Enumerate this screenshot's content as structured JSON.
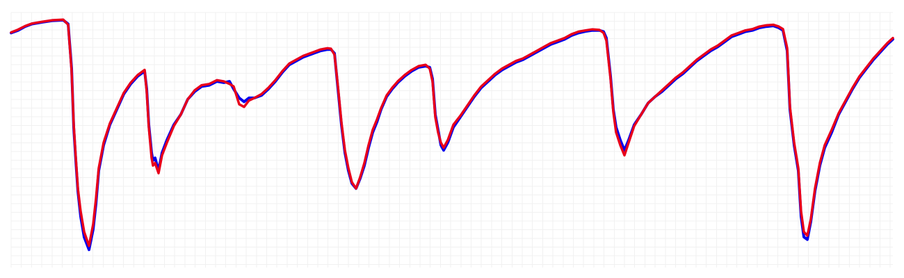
{
  "chart_data": {
    "type": "line",
    "title": "",
    "xlabel": "",
    "ylabel": "",
    "xlim": [
      0,
      1268
    ],
    "ylim": [
      0,
      1
    ],
    "grid": true,
    "legend": "none",
    "series": [
      {
        "color": "#0000ee",
        "points": [
          [
            0,
            0.92
          ],
          [
            10,
            0.93
          ],
          [
            20,
            0.945
          ],
          [
            30,
            0.955
          ],
          [
            45,
            0.962
          ],
          [
            60,
            0.968
          ],
          [
            75,
            0.97
          ],
          [
            82,
            0.955
          ],
          [
            87,
            0.78
          ],
          [
            90,
            0.55
          ],
          [
            93,
            0.42
          ],
          [
            96,
            0.3
          ],
          [
            100,
            0.2
          ],
          [
            105,
            0.12
          ],
          [
            112,
            0.07
          ],
          [
            118,
            0.15
          ],
          [
            122,
            0.25
          ],
          [
            126,
            0.38
          ],
          [
            133,
            0.48
          ],
          [
            142,
            0.56
          ],
          [
            152,
            0.62
          ],
          [
            162,
            0.68
          ],
          [
            172,
            0.72
          ],
          [
            182,
            0.75
          ],
          [
            192,
            0.77
          ],
          [
            195,
            0.7
          ],
          [
            198,
            0.56
          ],
          [
            202,
            0.45
          ],
          [
            204,
            0.42
          ],
          [
            207,
            0.43
          ],
          [
            212,
            0.38
          ],
          [
            217,
            0.45
          ],
          [
            224,
            0.5
          ],
          [
            234,
            0.56
          ],
          [
            244,
            0.6
          ],
          [
            254,
            0.66
          ],
          [
            264,
            0.69
          ],
          [
            274,
            0.71
          ],
          [
            285,
            0.715
          ],
          [
            296,
            0.73
          ],
          [
            306,
            0.725
          ],
          [
            314,
            0.73
          ],
          [
            320,
            0.7
          ],
          [
            328,
            0.665
          ],
          [
            335,
            0.65
          ],
          [
            342,
            0.665
          ],
          [
            350,
            0.665
          ],
          [
            360,
            0.675
          ],
          [
            370,
            0.7
          ],
          [
            380,
            0.73
          ],
          [
            390,
            0.765
          ],
          [
            400,
            0.795
          ],
          [
            410,
            0.81
          ],
          [
            420,
            0.825
          ],
          [
            435,
            0.84
          ],
          [
            445,
            0.85
          ],
          [
            455,
            0.855
          ],
          [
            460,
            0.855
          ],
          [
            465,
            0.84
          ],
          [
            470,
            0.7
          ],
          [
            475,
            0.56
          ],
          [
            480,
            0.45
          ],
          [
            485,
            0.38
          ],
          [
            490,
            0.33
          ],
          [
            496,
            0.31
          ],
          [
            502,
            0.35
          ],
          [
            508,
            0.4
          ],
          [
            514,
            0.47
          ],
          [
            520,
            0.53
          ],
          [
            526,
            0.57
          ],
          [
            532,
            0.62
          ],
          [
            540,
            0.67
          ],
          [
            548,
            0.7
          ],
          [
            556,
            0.725
          ],
          [
            566,
            0.75
          ],
          [
            576,
            0.77
          ],
          [
            586,
            0.785
          ],
          [
            596,
            0.79
          ],
          [
            602,
            0.785
          ],
          [
            606,
            0.74
          ],
          [
            610,
            0.6
          ],
          [
            614,
            0.54
          ],
          [
            618,
            0.48
          ],
          [
            622,
            0.46
          ],
          [
            628,
            0.49
          ],
          [
            636,
            0.55
          ],
          [
            646,
            0.59
          ],
          [
            656,
            0.63
          ],
          [
            666,
            0.67
          ],
          [
            676,
            0.705
          ],
          [
            686,
            0.73
          ],
          [
            696,
            0.755
          ],
          [
            706,
            0.775
          ],
          [
            716,
            0.79
          ],
          [
            726,
            0.805
          ],
          [
            736,
            0.815
          ],
          [
            746,
            0.83
          ],
          [
            756,
            0.845
          ],
          [
            766,
            0.86
          ],
          [
            776,
            0.875
          ],
          [
            786,
            0.885
          ],
          [
            796,
            0.895
          ],
          [
            806,
            0.91
          ],
          [
            816,
            0.92
          ],
          [
            826,
            0.926
          ],
          [
            836,
            0.93
          ],
          [
            846,
            0.93
          ],
          [
            852,
            0.925
          ],
          [
            856,
            0.9
          ],
          [
            862,
            0.75
          ],
          [
            866,
            0.62
          ],
          [
            870,
            0.55
          ],
          [
            876,
            0.5
          ],
          [
            882,
            0.46
          ],
          [
            888,
            0.5
          ],
          [
            896,
            0.56
          ],
          [
            906,
            0.6
          ],
          [
            916,
            0.645
          ],
          [
            926,
            0.67
          ],
          [
            936,
            0.69
          ],
          [
            946,
            0.715
          ],
          [
            956,
            0.74
          ],
          [
            966,
            0.76
          ],
          [
            976,
            0.785
          ],
          [
            986,
            0.81
          ],
          [
            996,
            0.83
          ],
          [
            1006,
            0.85
          ],
          [
            1016,
            0.865
          ],
          [
            1026,
            0.885
          ],
          [
            1036,
            0.905
          ],
          [
            1046,
            0.915
          ],
          [
            1056,
            0.925
          ],
          [
            1066,
            0.93
          ],
          [
            1076,
            0.94
          ],
          [
            1086,
            0.945
          ],
          [
            1096,
            0.948
          ],
          [
            1104,
            0.94
          ],
          [
            1110,
            0.93
          ],
          [
            1116,
            0.85
          ],
          [
            1120,
            0.62
          ],
          [
            1126,
            0.48
          ],
          [
            1132,
            0.38
          ],
          [
            1136,
            0.2
          ],
          [
            1140,
            0.12
          ],
          [
            1145,
            0.11
          ],
          [
            1150,
            0.18
          ],
          [
            1156,
            0.3
          ],
          [
            1163,
            0.4
          ],
          [
            1170,
            0.47
          ],
          [
            1180,
            0.53
          ],
          [
            1190,
            0.6
          ],
          [
            1200,
            0.65
          ],
          [
            1210,
            0.7
          ],
          [
            1220,
            0.745
          ],
          [
            1230,
            0.78
          ],
          [
            1240,
            0.815
          ],
          [
            1250,
            0.845
          ],
          [
            1260,
            0.875
          ],
          [
            1268,
            0.895
          ]
        ]
      },
      {
        "color": "#e8001b",
        "points": [
          [
            0,
            0.922
          ],
          [
            10,
            0.933
          ],
          [
            20,
            0.947
          ],
          [
            30,
            0.957
          ],
          [
            45,
            0.964
          ],
          [
            60,
            0.97
          ],
          [
            75,
            0.972
          ],
          [
            82,
            0.952
          ],
          [
            87,
            0.77
          ],
          [
            90,
            0.56
          ],
          [
            93,
            0.43
          ],
          [
            96,
            0.31
          ],
          [
            100,
            0.22
          ],
          [
            105,
            0.14
          ],
          [
            112,
            0.085
          ],
          [
            118,
            0.17
          ],
          [
            122,
            0.27
          ],
          [
            126,
            0.39
          ],
          [
            133,
            0.49
          ],
          [
            142,
            0.565
          ],
          [
            152,
            0.625
          ],
          [
            162,
            0.685
          ],
          [
            172,
            0.725
          ],
          [
            182,
            0.755
          ],
          [
            192,
            0.775
          ],
          [
            195,
            0.69
          ],
          [
            198,
            0.55
          ],
          [
            202,
            0.43
          ],
          [
            204,
            0.4
          ],
          [
            207,
            0.41
          ],
          [
            212,
            0.37
          ],
          [
            217,
            0.44
          ],
          [
            224,
            0.49
          ],
          [
            234,
            0.555
          ],
          [
            244,
            0.6
          ],
          [
            254,
            0.66
          ],
          [
            264,
            0.695
          ],
          [
            274,
            0.715
          ],
          [
            285,
            0.72
          ],
          [
            296,
            0.735
          ],
          [
            306,
            0.73
          ],
          [
            314,
            0.72
          ],
          [
            320,
            0.71
          ],
          [
            328,
            0.64
          ],
          [
            335,
            0.63
          ],
          [
            342,
            0.655
          ],
          [
            350,
            0.665
          ],
          [
            360,
            0.68
          ],
          [
            370,
            0.705
          ],
          [
            380,
            0.735
          ],
          [
            390,
            0.77
          ],
          [
            400,
            0.8
          ],
          [
            410,
            0.815
          ],
          [
            420,
            0.83
          ],
          [
            435,
            0.845
          ],
          [
            445,
            0.855
          ],
          [
            455,
            0.86
          ],
          [
            460,
            0.858
          ],
          [
            465,
            0.835
          ],
          [
            470,
            0.71
          ],
          [
            475,
            0.57
          ],
          [
            480,
            0.46
          ],
          [
            485,
            0.39
          ],
          [
            490,
            0.335
          ],
          [
            496,
            0.31
          ],
          [
            502,
            0.355
          ],
          [
            508,
            0.41
          ],
          [
            514,
            0.48
          ],
          [
            520,
            0.54
          ],
          [
            526,
            0.58
          ],
          [
            532,
            0.625
          ],
          [
            540,
            0.675
          ],
          [
            548,
            0.705
          ],
          [
            556,
            0.73
          ],
          [
            566,
            0.755
          ],
          [
            576,
            0.775
          ],
          [
            586,
            0.79
          ],
          [
            596,
            0.795
          ],
          [
            602,
            0.78
          ],
          [
            606,
            0.73
          ],
          [
            610,
            0.59
          ],
          [
            614,
            0.53
          ],
          [
            618,
            0.49
          ],
          [
            622,
            0.47
          ],
          [
            628,
            0.5
          ],
          [
            636,
            0.56
          ],
          [
            646,
            0.595
          ],
          [
            656,
            0.635
          ],
          [
            666,
            0.675
          ],
          [
            676,
            0.71
          ],
          [
            686,
            0.735
          ],
          [
            696,
            0.76
          ],
          [
            706,
            0.78
          ],
          [
            716,
            0.795
          ],
          [
            726,
            0.81
          ],
          [
            736,
            0.82
          ],
          [
            746,
            0.835
          ],
          [
            756,
            0.85
          ],
          [
            766,
            0.865
          ],
          [
            776,
            0.88
          ],
          [
            786,
            0.89
          ],
          [
            796,
            0.9
          ],
          [
            806,
            0.915
          ],
          [
            816,
            0.925
          ],
          [
            826,
            0.93
          ],
          [
            836,
            0.934
          ],
          [
            846,
            0.932
          ],
          [
            852,
            0.92
          ],
          [
            856,
            0.89
          ],
          [
            862,
            0.74
          ],
          [
            866,
            0.61
          ],
          [
            870,
            0.53
          ],
          [
            876,
            0.48
          ],
          [
            882,
            0.44
          ],
          [
            888,
            0.49
          ],
          [
            896,
            0.555
          ],
          [
            906,
            0.6
          ],
          [
            916,
            0.645
          ],
          [
            926,
            0.67
          ],
          [
            936,
            0.695
          ],
          [
            946,
            0.72
          ],
          [
            956,
            0.745
          ],
          [
            966,
            0.765
          ],
          [
            976,
            0.79
          ],
          [
            986,
            0.815
          ],
          [
            996,
            0.835
          ],
          [
            1006,
            0.855
          ],
          [
            1016,
            0.87
          ],
          [
            1026,
            0.89
          ],
          [
            1036,
            0.91
          ],
          [
            1046,
            0.92
          ],
          [
            1056,
            0.93
          ],
          [
            1066,
            0.935
          ],
          [
            1076,
            0.945
          ],
          [
            1086,
            0.95
          ],
          [
            1096,
            0.952
          ],
          [
            1104,
            0.945
          ],
          [
            1110,
            0.935
          ],
          [
            1116,
            0.86
          ],
          [
            1120,
            0.63
          ],
          [
            1126,
            0.49
          ],
          [
            1132,
            0.39
          ],
          [
            1136,
            0.22
          ],
          [
            1140,
            0.14
          ],
          [
            1145,
            0.125
          ],
          [
            1150,
            0.19
          ],
          [
            1156,
            0.31
          ],
          [
            1163,
            0.41
          ],
          [
            1170,
            0.48
          ],
          [
            1180,
            0.54
          ],
          [
            1190,
            0.605
          ],
          [
            1200,
            0.655
          ],
          [
            1210,
            0.705
          ],
          [
            1220,
            0.75
          ],
          [
            1230,
            0.785
          ],
          [
            1240,
            0.82
          ],
          [
            1250,
            0.85
          ],
          [
            1260,
            0.88
          ],
          [
            1268,
            0.9
          ]
        ]
      }
    ]
  }
}
